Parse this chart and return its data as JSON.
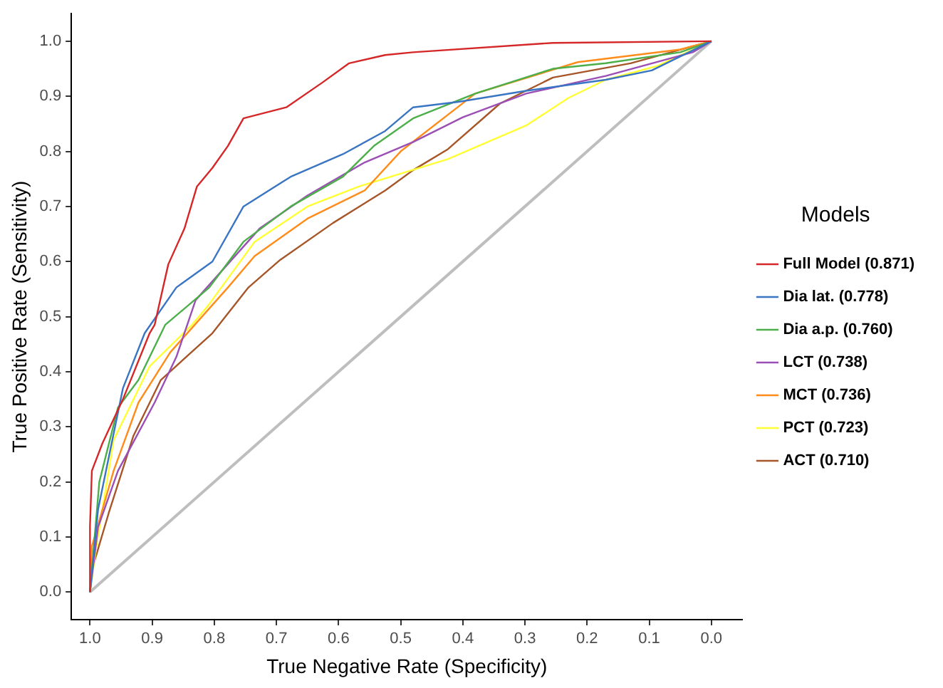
{
  "chart_data": {
    "type": "line",
    "xlabel": "True Negative Rate (Specificity)",
    "ylabel": "True Positive Rate (Sensitivity)",
    "legend_title": "Models",
    "legend": "right",
    "grid": false,
    "marker": "none",
    "line_style": "solid",
    "xlim": [
      1.03,
      -0.05
    ],
    "ylim": [
      -0.05,
      1.05
    ],
    "xticks": [
      {
        "value": 1,
        "label": "1.0"
      },
      0.9,
      0.8,
      0.7,
      0.6,
      0.5,
      0.4,
      0.3,
      0.2,
      0.1,
      {
        "value": 0,
        "label": "0.0"
      }
    ],
    "yticks": [
      {
        "value": 0,
        "label": "0.0"
      },
      0.1,
      0.2,
      0.3,
      0.4,
      0.5,
      0.6,
      0.7,
      0.8,
      0.9,
      {
        "value": 1,
        "label": "1.0"
      }
    ],
    "series": [
      {
        "name": "Full Model (0.871)",
        "color": "#d62728",
        "x": [
          1,
          1,
          0.997,
          0.98,
          0.947,
          0.904,
          0.896,
          0.874,
          0.848,
          0.828,
          0.803,
          0.778,
          0.753,
          0.684,
          0.626,
          0.583,
          0.525,
          0.48,
          0.255,
          0
        ],
        "values": [
          0,
          0.12,
          0.22,
          0.27,
          0.35,
          0.47,
          0.485,
          0.595,
          0.66,
          0.736,
          0.77,
          0.81,
          0.86,
          0.88,
          0.925,
          0.96,
          0.975,
          0.98,
          0.997,
          1
        ]
      },
      {
        "name": "Dia lat. (0.778)",
        "color": "#3a75c4",
        "x": [
          1,
          0.987,
          0.947,
          0.912,
          0.861,
          0.803,
          0.753,
          0.677,
          0.593,
          0.525,
          0.48,
          0.407,
          0.298,
          0.17,
          0.096,
          0
        ],
        "values": [
          0,
          0.15,
          0.37,
          0.47,
          0.553,
          0.6,
          0.7,
          0.754,
          0.795,
          0.837,
          0.88,
          0.89,
          0.91,
          0.93,
          0.947,
          1
        ]
      },
      {
        "name": "Dia a.p. (0.760)",
        "color": "#4daf4a",
        "x": [
          1,
          0.985,
          0.955,
          0.922,
          0.879,
          0.808,
          0.753,
          0.677,
          0.593,
          0.543,
          0.48,
          0.38,
          0.255,
          0.17,
          0.05,
          0
        ],
        "values": [
          0,
          0.2,
          0.335,
          0.385,
          0.485,
          0.553,
          0.636,
          0.7,
          0.754,
          0.81,
          0.86,
          0.905,
          0.95,
          0.96,
          0.98,
          1
        ]
      },
      {
        "name": "LCT (0.738)",
        "color": "#9b4fb5",
        "x": [
          1,
          0.987,
          0.955,
          0.896,
          0.861,
          0.83,
          0.727,
          0.65,
          0.558,
          0.48,
          0.4,
          0.298,
          0.17,
          0.03,
          0
        ],
        "values": [
          0,
          0.118,
          0.22,
          0.344,
          0.427,
          0.53,
          0.66,
          0.72,
          0.78,
          0.817,
          0.862,
          0.905,
          0.937,
          0.98,
          1
        ]
      },
      {
        "name": "MCT (0.736)",
        "color": "#ff8c1a",
        "x": [
          1,
          0.997,
          0.962,
          0.922,
          0.871,
          0.778,
          0.735,
          0.65,
          0.558,
          0.5,
          0.38,
          0.215,
          0.05,
          0
        ],
        "values": [
          0,
          0.083,
          0.22,
          0.344,
          0.435,
          0.553,
          0.61,
          0.678,
          0.729,
          0.8,
          0.905,
          0.962,
          0.985,
          1
        ]
      },
      {
        "name": "PCT (0.723)",
        "color": "#ffff33",
        "x": [
          1,
          0.99,
          0.962,
          0.904,
          0.836,
          0.81,
          0.735,
          0.65,
          0.568,
          0.424,
          0.298,
          0.23,
          0.17,
          0.087,
          0
        ],
        "values": [
          0,
          0.08,
          0.276,
          0.41,
          0.485,
          0.52,
          0.636,
          0.7,
          0.736,
          0.786,
          0.847,
          0.897,
          0.93,
          0.955,
          1
        ]
      },
      {
        "name": "ACT (0.710)",
        "color": "#a65628",
        "x": [
          1,
          0.997,
          0.97,
          0.93,
          0.886,
          0.803,
          0.745,
          0.694,
          0.609,
          0.525,
          0.48,
          0.424,
          0.34,
          0.255,
          0.13,
          0
        ],
        "values": [
          0,
          0.04,
          0.143,
          0.284,
          0.385,
          0.47,
          0.553,
          0.603,
          0.67,
          0.729,
          0.766,
          0.804,
          0.887,
          0.934,
          0.96,
          1
        ]
      },
      {
        "color": "#bebebe",
        "x": [
          1,
          0
        ],
        "values": [
          0,
          1
        ]
      }
    ]
  }
}
